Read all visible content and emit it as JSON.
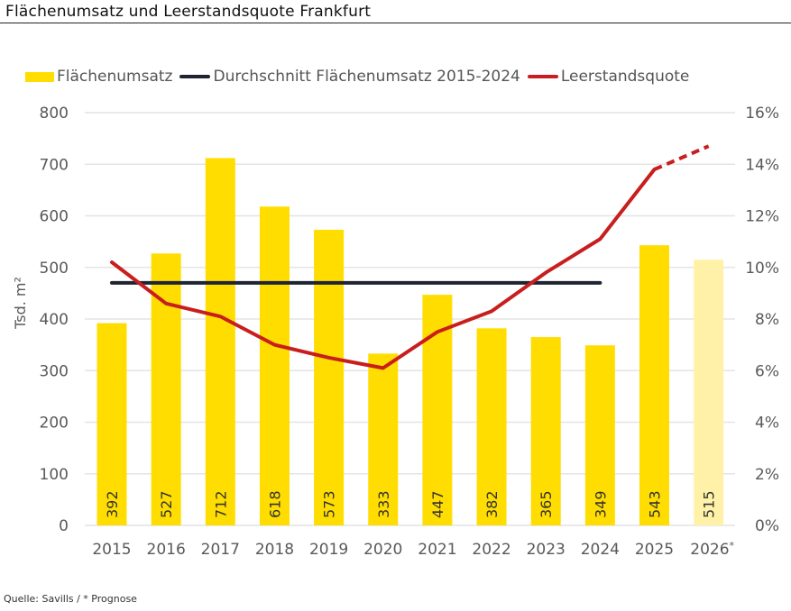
{
  "title": "Flächenumsatz und Leerstandsquote Frankfurt",
  "source": "Quelle: Savills / * Prognose",
  "colors": {
    "bar": "#FFDD00",
    "bar_forecast": "#FFF2A8",
    "average_line": "#1F2433",
    "vacancy_line": "#C81E1E",
    "grid": "#E4E4E4"
  },
  "chart_data": {
    "type": "bar",
    "title": "Flächenumsatz und Leerstandsquote Frankfurt",
    "categories": [
      "2015",
      "2016",
      "2017",
      "2018",
      "2019",
      "2020",
      "2021",
      "2022",
      "2023",
      "2024",
      "2025",
      "2026*"
    ],
    "forecast_categories": [
      "2026*"
    ],
    "legend": {
      "position": "top",
      "entries": [
        "Flächenumsatz",
        "Durchschnitt Flächenumsatz 2015-2024",
        "Leerstandsquote"
      ]
    },
    "series": [
      {
        "name": "Flächenumsatz",
        "type": "bar",
        "axis": "left",
        "values": [
          392,
          527,
          712,
          618,
          573,
          333,
          447,
          382,
          365,
          349,
          543,
          515
        ],
        "data_labels": [
          "392",
          "527",
          "712",
          "618",
          "573",
          "333",
          "447",
          "382",
          "365",
          "349",
          "543",
          "515"
        ]
      },
      {
        "name": "Durchschnitt Flächenumsatz 2015-2024",
        "type": "line",
        "axis": "left",
        "categories": [
          "2015",
          "2024"
        ],
        "values": [
          470,
          470
        ]
      },
      {
        "name": "Leerstandsquote",
        "type": "line",
        "axis": "right",
        "values": [
          10.2,
          8.6,
          8.1,
          7.0,
          6.5,
          6.1,
          7.5,
          8.3,
          9.8,
          11.1,
          13.8,
          14.7
        ],
        "dashed_from": "2025"
      }
    ],
    "ylabel": "Tsd. m²",
    "ylim": [
      0,
      800
    ],
    "yticks": [
      "0",
      "100",
      "200",
      "300",
      "400",
      "500",
      "600",
      "700",
      "800"
    ],
    "y2lim": [
      0,
      16
    ],
    "y2ticks": [
      "0%",
      "2%",
      "4%",
      "6%",
      "8%",
      "10%",
      "12%",
      "14%",
      "16%"
    ],
    "xlabel": "",
    "grid": true
  }
}
